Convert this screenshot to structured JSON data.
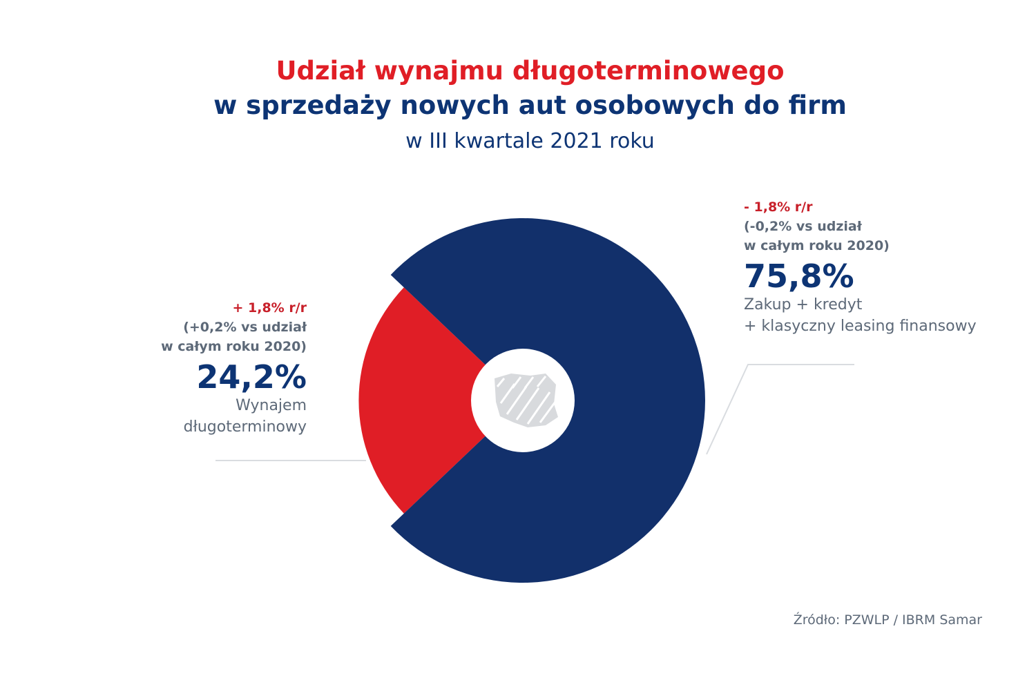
{
  "title_line1": "Udział wynajmu długoterminowego",
  "title_line2": "w sprzedaży nowych aut osobowych do firm",
  "subtitle": "w III kwartale 2021 roku",
  "source": "Źródło: PZWLP / IBRM Samar",
  "colors": {
    "long_term_rental": "#e01e26",
    "purchase_credit_leasing": "#12306b",
    "title_red": "#e01e26",
    "title_blue": "#0d3474"
  },
  "center_icon": "poland-map-icon",
  "chart_data": {
    "type": "pie",
    "style": "donut",
    "categories": [
      "Wynajem długoterminowy",
      "Zakup + kredyt + klasyczny leasing finansowy"
    ],
    "values": [
      24.2,
      75.8
    ],
    "unit": "%",
    "title": "Udział wynajmu długoterminowego w sprzedaży nowych aut osobowych do firm",
    "subtitle": "w III kwartale 2021 roku",
    "segments": [
      {
        "value_label": "24,2%",
        "desc_lines": [
          "Wynajem",
          "długoterminowy"
        ],
        "change": "+ 1,8% r/r",
        "vs_lines": [
          "(+0,2% vs udział",
          "w całym roku 2020)"
        ],
        "color": "#e01e26"
      },
      {
        "value_label": "75,8%",
        "desc_lines": [
          "Zakup + kredyt",
          "+ klasyczny leasing finansowy"
        ],
        "change": "- 1,8% r/r",
        "vs_lines": [
          "(-0,2% vs udział",
          "w całym roku 2020)"
        ],
        "color": "#12306b"
      }
    ]
  }
}
